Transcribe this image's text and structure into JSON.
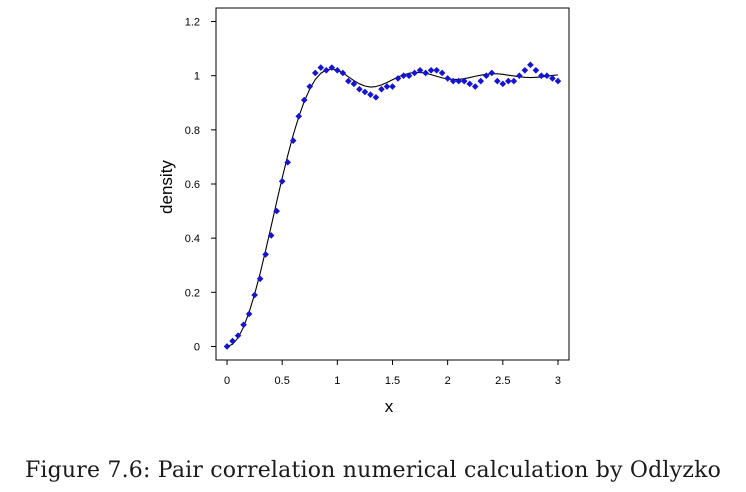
{
  "caption": "Figure 7.6: Pair correlation numerical calculation by Odlyzko",
  "chart_data": {
    "type": "scatter",
    "xlabel": "x",
    "ylabel": "density",
    "xlim": [
      -0.1,
      3.1
    ],
    "ylim": [
      -0.05,
      1.25
    ],
    "x_ticks": [
      0,
      0.5,
      1,
      1.5,
      2,
      2.5,
      3
    ],
    "x_tick_labels": [
      "0",
      "0.5",
      "1",
      "1.5",
      "2",
      "2.5",
      "3"
    ],
    "y_ticks": [
      0,
      0.2,
      0.4,
      0.6,
      0.8,
      1,
      1.2
    ],
    "y_tick_labels": [
      "0",
      "0.2",
      "0.4",
      "0.6",
      "0.8",
      "1",
      "1.2"
    ],
    "grid": false,
    "legend": "none",
    "colors": {
      "points": "#1414d2",
      "curve": "#000000",
      "axes": "#000000"
    },
    "series": [
      {
        "kind": "scatter",
        "x": [
          0.0,
          0.05,
          0.1,
          0.15,
          0.2,
          0.25,
          0.3,
          0.35,
          0.4,
          0.45,
          0.5,
          0.55,
          0.6,
          0.65,
          0.7,
          0.75,
          0.8,
          0.85,
          0.9,
          0.95,
          1.0,
          1.05,
          1.1,
          1.15,
          1.2,
          1.25,
          1.3,
          1.35,
          1.4,
          1.45,
          1.5,
          1.55,
          1.6,
          1.65,
          1.7,
          1.75,
          1.8,
          1.85,
          1.9,
          1.95,
          2.0,
          2.05,
          2.1,
          2.15,
          2.2,
          2.25,
          2.3,
          2.35,
          2.4,
          2.45,
          2.5,
          2.55,
          2.6,
          2.65,
          2.7,
          2.75,
          2.8,
          2.85,
          2.9,
          2.95,
          3.0
        ],
        "y": [
          0.0,
          0.02,
          0.04,
          0.08,
          0.12,
          0.19,
          0.25,
          0.34,
          0.41,
          0.5,
          0.61,
          0.68,
          0.76,
          0.85,
          0.91,
          0.96,
          1.01,
          1.03,
          1.02,
          1.03,
          1.02,
          1.01,
          0.98,
          0.97,
          0.95,
          0.94,
          0.93,
          0.92,
          0.95,
          0.96,
          0.96,
          0.99,
          1.0,
          1.0,
          1.01,
          1.02,
          1.01,
          1.02,
          1.02,
          1.01,
          0.99,
          0.98,
          0.98,
          0.98,
          0.97,
          0.96,
          0.98,
          1.0,
          1.01,
          0.98,
          0.97,
          0.98,
          0.98,
          1.0,
          1.02,
          1.04,
          1.02,
          1.0,
          1.0,
          0.99,
          0.98
        ]
      },
      {
        "kind": "line",
        "x": [
          0.0,
          0.05,
          0.1,
          0.15,
          0.2,
          0.25,
          0.3,
          0.35,
          0.4,
          0.45,
          0.5,
          0.55,
          0.6,
          0.65,
          0.7,
          0.75,
          0.8,
          0.85,
          0.9,
          0.95,
          1.0,
          1.05,
          1.1,
          1.15,
          1.2,
          1.25,
          1.3,
          1.35,
          1.4,
          1.45,
          1.5,
          1.55,
          1.6,
          1.65,
          1.7,
          1.75,
          1.8,
          1.85,
          1.9,
          1.95,
          2.0,
          2.05,
          2.1,
          2.15,
          2.2,
          2.25,
          2.3,
          2.35,
          2.4,
          2.45,
          2.5,
          2.55,
          2.6,
          2.65,
          2.7,
          2.75,
          2.8,
          2.85,
          2.9,
          2.95,
          3.0
        ],
        "y": [
          0.0,
          0.008,
          0.032,
          0.072,
          0.126,
          0.193,
          0.27,
          0.355,
          0.444,
          0.534,
          0.622,
          0.705,
          0.781,
          0.848,
          0.905,
          0.951,
          0.986,
          1.009,
          1.021,
          1.025,
          1.021,
          1.01,
          0.996,
          0.982,
          0.97,
          0.962,
          0.958,
          0.96,
          0.966,
          0.975,
          0.985,
          0.995,
          1.003,
          1.009,
          1.012,
          1.012,
          1.009,
          1.004,
          0.998,
          0.992,
          0.988,
          0.986,
          0.986,
          0.989,
          0.993,
          0.998,
          1.002,
          1.005,
          1.007,
          1.007,
          1.005,
          1.002,
          0.999,
          0.996,
          0.994,
          0.993,
          0.994,
          0.995,
          0.998,
          1.001,
          1.003
        ]
      }
    ]
  }
}
